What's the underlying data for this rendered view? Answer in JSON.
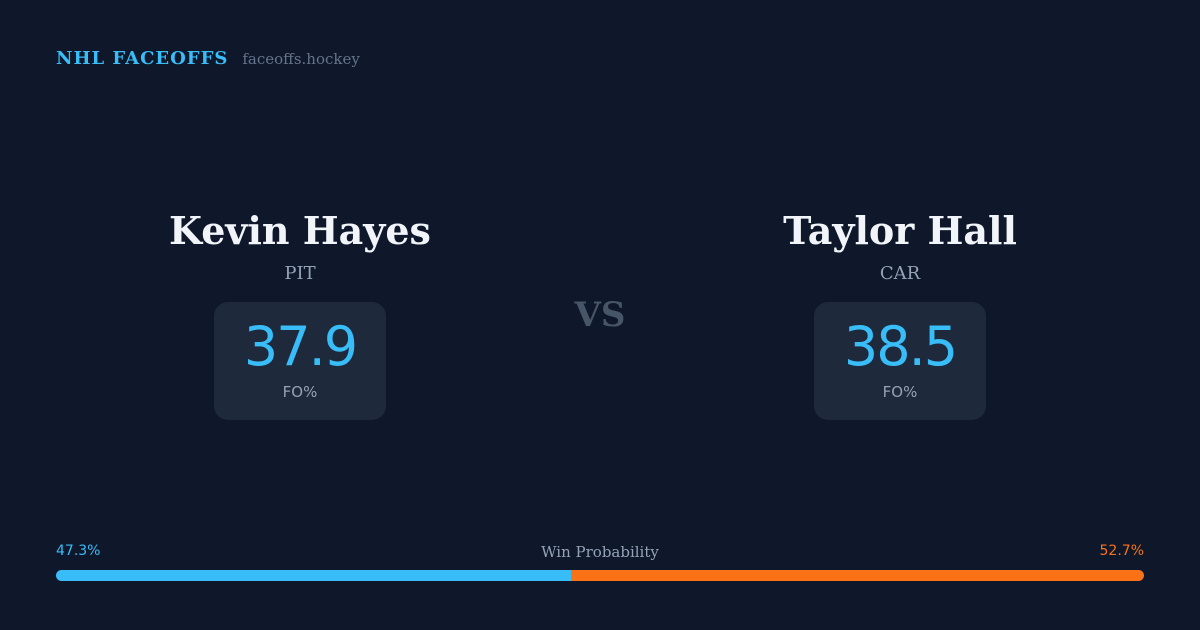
{
  "brand": {
    "title": "NHL FACEOFFS",
    "site": "faceoffs.hockey"
  },
  "players": {
    "left": {
      "name": "Kevin Hayes",
      "team": "PIT",
      "stat_value": "37.9",
      "stat_label": "FO%"
    },
    "right": {
      "name": "Taylor Hall",
      "team": "CAR",
      "stat_value": "38.5",
      "stat_label": "FO%"
    }
  },
  "vs_label": "VS",
  "win_probability": {
    "title": "Win Probability",
    "left_label": "47.3%",
    "right_label": "52.7%",
    "left_fraction": 0.473,
    "left_color": "#38bdf8",
    "right_color": "#f97316"
  }
}
